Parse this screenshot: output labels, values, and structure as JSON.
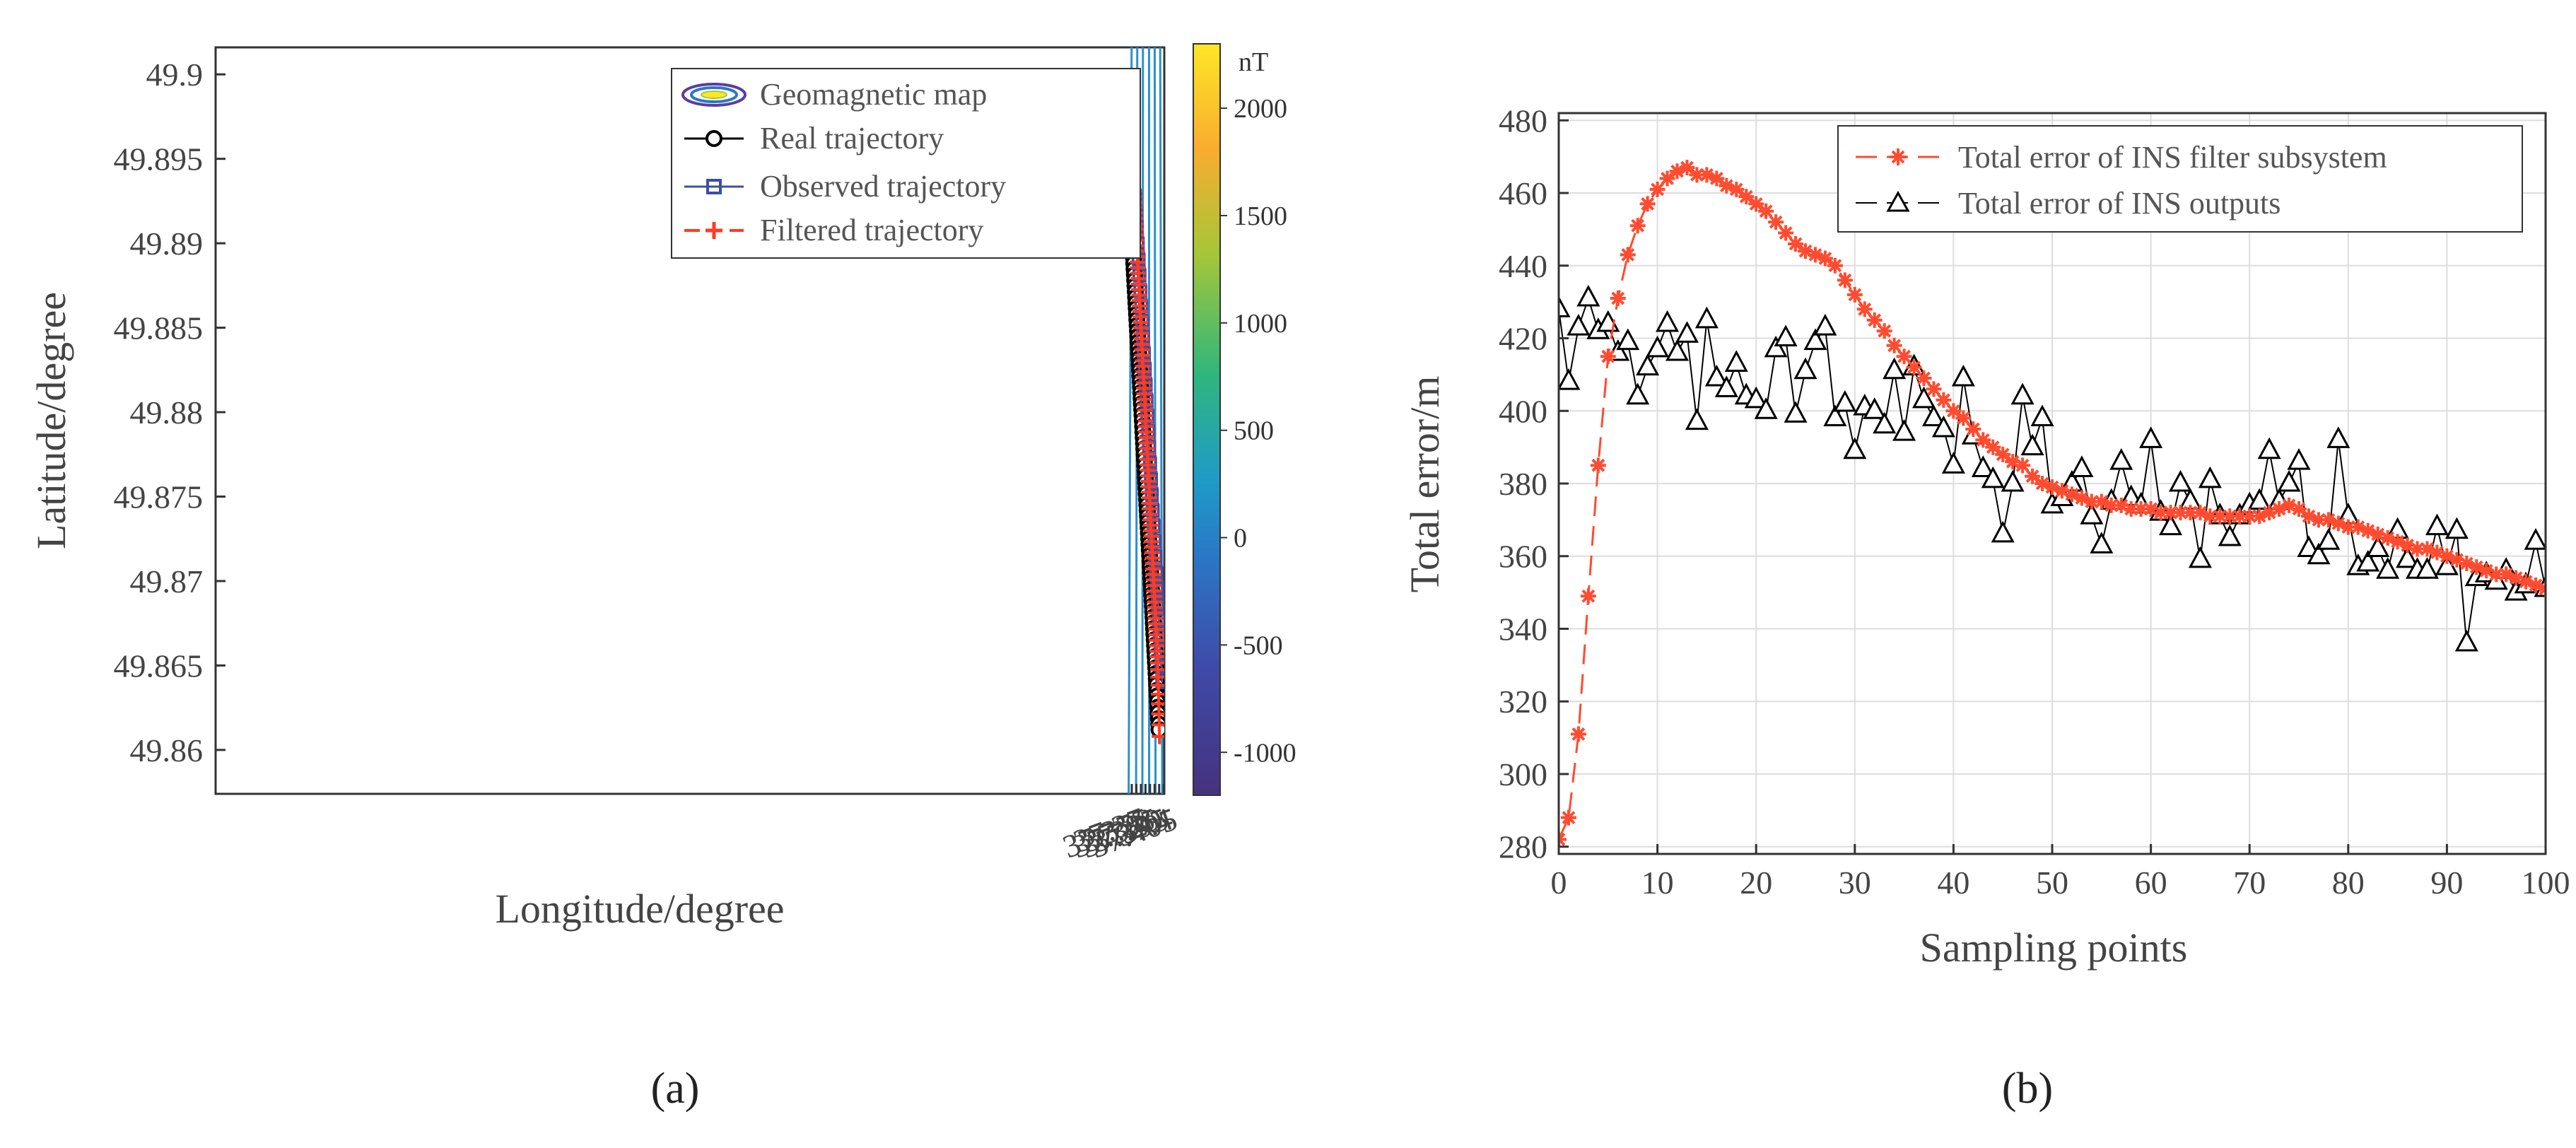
{
  "chart_data": [
    {
      "panel_label": "(a)",
      "type": "line",
      "xlabel": "Longitude/degree",
      "ylabel": "Latitude/degree",
      "xlim": [
        36.3668,
        37.4056
      ],
      "ylim": [
        49.8574,
        49.9016
      ],
      "xticks": [
        "37.37",
        "37.375",
        "37.38",
        "37.385",
        "37.39",
        "37.395",
        "37.4",
        "37.405"
      ],
      "yticks": [
        "49.86",
        "49.865",
        "49.87",
        "49.875",
        "49.88",
        "49.885",
        "49.89",
        "49.895",
        "49.9"
      ],
      "contour_lines": [
        {
          "x_top": 37.3698,
          "x_bottom": 37.3666
        },
        {
          "x_top": 37.376,
          "x_bottom": 37.3747
        },
        {
          "x_top": 37.3822,
          "x_bottom": 37.3816
        },
        {
          "x_top": 37.3889,
          "x_bottom": 37.389
        },
        {
          "x_top": 37.3951,
          "x_bottom": 37.396
        },
        {
          "x_top": 37.4011,
          "x_bottom": 37.4034
        }
      ],
      "series": [
        {
          "name": "Real trajectory",
          "marker": "circle",
          "color": "#000000",
          "start": [
            37.3702,
            49.8908
          ],
          "end": [
            37.3999,
            49.8612
          ],
          "count": 90
        },
        {
          "name": "Observed trajectory",
          "marker": "square",
          "color": "#3a4fa8",
          "start": [
            37.3733,
            49.8931
          ],
          "end": [
            37.4035,
            49.864
          ],
          "count": 95
        },
        {
          "name": "Filtered trajectory",
          "marker": "plus",
          "color": "#ff3b22",
          "start": [
            37.3725,
            49.8931
          ],
          "end": [
            37.4009,
            49.8626
          ],
          "count": 95
        }
      ],
      "legend": [
        "Geomagnetic map",
        "Real trajectory",
        "Observed trajectory",
        "Filtered trajectory"
      ],
      "colorbar": {
        "unit": "nT",
        "range": [
          -1200,
          2300
        ],
        "ticks": [
          "2000",
          "1500",
          "1000",
          "500",
          "0",
          "-500",
          "-1000"
        ],
        "colors": [
          "#fde725",
          "#f9ac2f",
          "#a6c638",
          "#2fb67c",
          "#1f9bc7",
          "#2a78c6",
          "#3f4aa8",
          "#46327e"
        ]
      }
    },
    {
      "panel_label": "(b)",
      "type": "line",
      "xlabel": "Sampling points",
      "ylabel": "Total error/m",
      "xlim": [
        0,
        100
      ],
      "ylim": [
        278,
        482
      ],
      "xticks": [
        "0",
        "10",
        "20",
        "30",
        "40",
        "50",
        "60",
        "70",
        "80",
        "90",
        "100"
      ],
      "yticks": [
        "280",
        "300",
        "320",
        "340",
        "360",
        "380",
        "400",
        "420",
        "440",
        "460",
        "480"
      ],
      "grid": true,
      "legend_position": "top-right",
      "series": [
        {
          "name": "Total error of INS filter subsystem",
          "marker": "asterisk",
          "color": "#ff4b30",
          "x": [
            0,
            1,
            2,
            3,
            4,
            5,
            6,
            7,
            8,
            9,
            10,
            11,
            12,
            13,
            14,
            15,
            16,
            17,
            18,
            19,
            20,
            21,
            22,
            23,
            24,
            25,
            26,
            27,
            28,
            29,
            30,
            31,
            32,
            33,
            34,
            35,
            36,
            37,
            38,
            39,
            40,
            41,
            42,
            43,
            44,
            45,
            46,
            47,
            48,
            49,
            50,
            51,
            52,
            53,
            54,
            55,
            56,
            57,
            58,
            59,
            60,
            61,
            62,
            63,
            64,
            65,
            66,
            67,
            68,
            69,
            70,
            71,
            72,
            73,
            74,
            75,
            76,
            77,
            78,
            79,
            80,
            81,
            82,
            83,
            84,
            85,
            86,
            87,
            88,
            89,
            90,
            91,
            92,
            93,
            94,
            95,
            96,
            97,
            98,
            99,
            100
          ],
          "values": [
            282,
            288,
            311,
            349,
            385,
            415,
            431,
            443,
            451,
            457,
            461,
            464,
            466,
            467,
            465,
            465,
            464,
            462,
            461,
            459,
            457,
            455,
            452,
            449,
            446,
            444,
            443,
            442,
            440,
            436,
            432,
            428,
            425,
            422,
            418,
            415,
            412,
            409,
            406,
            403,
            400,
            398,
            395,
            392,
            390,
            388,
            386,
            385,
            382,
            380,
            379,
            378,
            377,
            376,
            375,
            375,
            374,
            374,
            373,
            373,
            373,
            372,
            372,
            372,
            372,
            372,
            371,
            371,
            371,
            371,
            371,
            371,
            372,
            373,
            374,
            373,
            371,
            370,
            370,
            369,
            368,
            368,
            367,
            366,
            365,
            364,
            363,
            362,
            362,
            361,
            360,
            359,
            358,
            357,
            356,
            355,
            355,
            354,
            353,
            352,
            351
          ]
        },
        {
          "name": "Total error of INS outputs",
          "marker": "triangle",
          "color": "#000000",
          "x": [
            0,
            1,
            2,
            3,
            4,
            5,
            6,
            7,
            8,
            9,
            10,
            11,
            12,
            13,
            14,
            15,
            16,
            17,
            18,
            19,
            20,
            21,
            22,
            23,
            24,
            25,
            26,
            27,
            28,
            29,
            30,
            31,
            32,
            33,
            34,
            35,
            36,
            37,
            38,
            39,
            40,
            41,
            42,
            43,
            44,
            45,
            46,
            47,
            48,
            49,
            50,
            51,
            52,
            53,
            54,
            55,
            56,
            57,
            58,
            59,
            60,
            61,
            62,
            63,
            64,
            65,
            66,
            67,
            68,
            69,
            70,
            71,
            72,
            73,
            74,
            75,
            76,
            77,
            78,
            79,
            80,
            81,
            82,
            83,
            84,
            85,
            86,
            87,
            88,
            89,
            90,
            91,
            92,
            93,
            94,
            95,
            96,
            97,
            98,
            99,
            100
          ],
          "values": [
            428,
            408,
            423,
            431,
            422,
            424,
            416,
            419,
            404,
            412,
            417,
            424,
            416,
            421,
            397,
            425,
            409,
            406,
            413,
            404,
            403,
            400,
            417,
            420,
            399,
            411,
            419,
            423,
            398,
            402,
            389,
            401,
            400,
            396,
            411,
            394,
            412,
            403,
            398,
            395,
            385,
            409,
            393,
            384,
            381,
            366,
            380,
            404,
            390,
            398,
            374,
            376,
            380,
            384,
            371,
            363,
            375,
            386,
            376,
            374,
            392,
            372,
            368,
            380,
            375,
            359,
            381,
            371,
            365,
            371,
            374,
            375,
            389,
            375,
            380,
            386,
            362,
            360,
            364,
            392,
            371,
            357,
            358,
            362,
            356,
            367,
            359,
            356,
            356,
            368,
            357,
            367,
            336,
            354,
            355,
            353,
            356,
            350,
            352,
            364,
            351
          ]
        }
      ]
    }
  ],
  "captions": {
    "a": "(a)",
    "b": "(b)"
  }
}
